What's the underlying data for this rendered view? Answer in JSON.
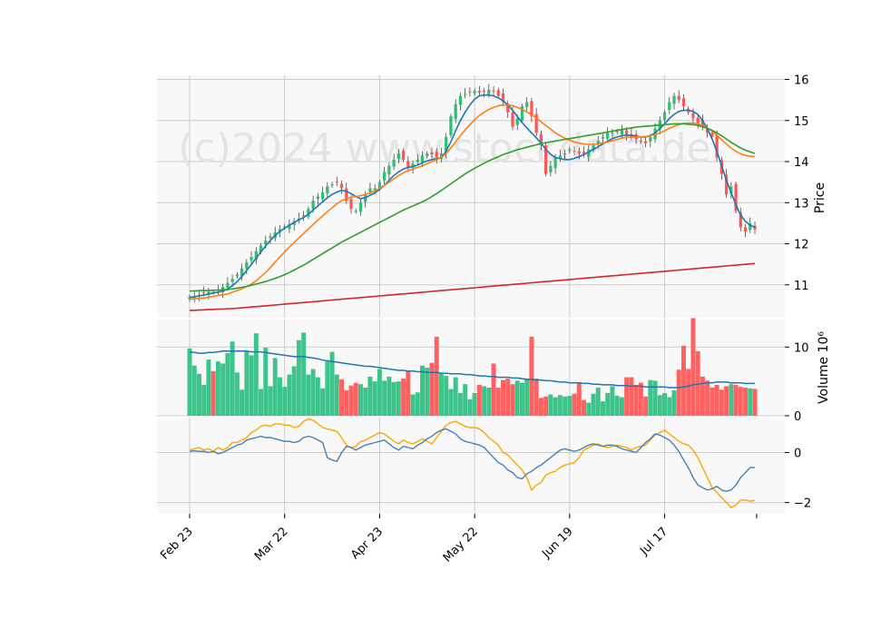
{
  "watermark": "(c)2024 www.stockdata.de",
  "colors": {
    "up": "#2fbf71",
    "down": "#ff5555",
    "vol_up": "#3cc48a",
    "vol_down": "#ff6060",
    "ma_fast": "#1f77b4",
    "ma_mid": "#ff7f0e",
    "ma_slow": "#2ca02c",
    "ma_long": "#d62728",
    "vol_avg": "#1f77b4",
    "osc_a": "#ffa500",
    "osc_b": "#4682b4"
  },
  "chart_data": {
    "type": "candlestick",
    "x_tick_labels": [
      "Feb 23",
      "Mar 22",
      "Apr 23",
      "May 22",
      "Jun 19",
      "Jul 17"
    ],
    "x_tick_index": [
      0,
      20,
      40,
      60,
      80,
      100
    ],
    "price_panel": {
      "ylabel": "Price",
      "ylim": [
        10.2,
        16.1
      ],
      "yticks": [
        11,
        12,
        13,
        14,
        15,
        16
      ],
      "grid": true,
      "close": [
        10.7,
        10.72,
        10.76,
        10.8,
        10.83,
        10.82,
        10.88,
        10.95,
        11.05,
        11.15,
        11.25,
        11.4,
        11.55,
        11.68,
        11.82,
        11.96,
        12.08,
        12.18,
        12.28,
        12.36,
        12.42,
        12.48,
        12.55,
        12.62,
        12.7,
        12.85,
        13.05,
        13.15,
        13.25,
        13.4,
        13.45,
        13.5,
        13.35,
        13.05,
        12.85,
        12.8,
        13.0,
        13.2,
        13.35,
        13.35,
        13.5,
        13.75,
        13.9,
        14.05,
        14.2,
        14.05,
        13.85,
        13.95,
        14.05,
        14.15,
        14.2,
        14.18,
        14.1,
        14.2,
        14.6,
        15.1,
        15.4,
        15.6,
        15.65,
        15.7,
        15.72,
        15.68,
        15.7,
        15.75,
        15.72,
        15.6,
        15.45,
        15.2,
        14.85,
        15.05,
        15.35,
        15.45,
        15.1,
        14.7,
        14.4,
        13.7,
        13.9,
        14.1,
        14.15,
        14.2,
        14.3,
        14.25,
        14.2,
        14.18,
        14.3,
        14.4,
        14.5,
        14.6,
        14.7,
        14.7,
        14.72,
        14.78,
        14.65,
        14.6,
        14.55,
        14.5,
        14.45,
        14.6,
        14.8,
        15.0,
        15.2,
        15.45,
        15.6,
        15.5,
        15.35,
        15.2,
        15.05,
        14.95,
        14.85,
        14.7,
        14.6,
        14.1,
        13.7,
        13.2,
        13.4,
        12.8,
        12.4,
        12.3,
        12.5,
        12.35
      ],
      "moving_averages": {
        "fast": [
          10.7,
          10.71,
          10.73,
          10.75,
          10.78,
          10.8,
          10.82,
          10.85,
          10.9,
          10.98,
          11.08,
          11.2,
          11.35,
          11.5,
          11.65,
          11.8,
          11.95,
          12.08,
          12.2,
          12.3,
          12.38,
          12.45,
          12.52,
          12.58,
          12.64,
          12.72,
          12.82,
          12.92,
          13.02,
          13.12,
          13.2,
          13.26,
          13.3,
          13.28,
          13.22,
          13.15,
          13.1,
          13.12,
          13.18,
          13.24,
          13.32,
          13.42,
          13.55,
          13.66,
          13.75,
          13.82,
          13.86,
          13.88,
          13.92,
          13.97,
          14.02,
          14.05,
          14.07,
          14.1,
          14.25,
          14.48,
          14.75,
          15.0,
          15.2,
          15.38,
          15.52,
          15.6,
          15.62,
          15.62,
          15.6,
          15.55,
          15.48,
          15.38,
          15.25,
          15.1,
          14.95,
          14.82,
          14.7,
          14.58,
          14.45,
          14.3,
          14.18,
          14.1,
          14.07,
          14.05,
          14.05,
          14.08,
          14.12,
          14.17,
          14.23,
          14.3,
          14.36,
          14.43,
          14.5,
          14.56,
          14.6,
          14.63,
          14.64,
          14.64,
          14.62,
          14.6,
          14.6,
          14.63,
          14.7,
          14.8,
          14.92,
          15.05,
          15.15,
          15.22,
          15.25,
          15.25,
          15.22,
          15.15,
          15.0,
          14.8,
          14.55,
          14.25,
          13.9,
          13.55,
          13.25,
          12.95,
          12.7,
          12.55,
          12.45,
          12.4
        ],
        "mid": [
          10.65,
          10.66,
          10.67,
          10.68,
          10.7,
          10.72,
          10.74,
          10.76,
          10.78,
          10.82,
          10.86,
          10.9,
          10.96,
          11.02,
          11.1,
          11.2,
          11.3,
          11.42,
          11.55,
          11.68,
          11.8,
          11.92,
          12.03,
          12.14,
          12.25,
          12.36,
          12.47,
          12.58,
          12.68,
          12.78,
          12.88,
          12.97,
          13.05,
          13.1,
          13.13,
          13.15,
          13.17,
          13.2,
          13.24,
          13.29,
          13.35,
          13.42,
          13.5,
          13.58,
          13.66,
          13.73,
          13.78,
          13.82,
          13.86,
          13.9,
          13.95,
          14.0,
          14.05,
          14.1,
          14.2,
          14.33,
          14.48,
          14.63,
          14.77,
          14.9,
          15.02,
          15.12,
          15.2,
          15.27,
          15.32,
          15.36,
          15.38,
          15.38,
          15.36,
          15.32,
          15.27,
          15.21,
          15.14,
          15.06,
          14.97,
          14.88,
          14.79,
          14.7,
          14.63,
          14.57,
          14.52,
          14.48,
          14.45,
          14.43,
          14.42,
          14.42,
          14.43,
          14.45,
          14.48,
          14.51,
          14.54,
          14.57,
          14.59,
          14.6,
          14.6,
          14.6,
          14.61,
          14.63,
          14.66,
          14.7,
          14.75,
          14.81,
          14.86,
          14.9,
          14.93,
          14.94,
          14.94,
          14.92,
          14.88,
          14.82,
          14.74,
          14.64,
          14.53,
          14.43,
          14.33,
          14.25,
          14.19,
          14.15,
          14.13,
          14.12
        ],
        "slow": [
          10.85,
          10.85,
          10.86,
          10.86,
          10.86,
          10.87,
          10.87,
          10.88,
          10.89,
          10.9,
          10.92,
          10.94,
          10.96,
          10.99,
          11.02,
          11.05,
          11.08,
          11.12,
          11.16,
          11.2,
          11.25,
          11.3,
          11.36,
          11.42,
          11.48,
          11.55,
          11.62,
          11.69,
          11.76,
          11.83,
          11.9,
          11.97,
          12.04,
          12.1,
          12.16,
          12.22,
          12.28,
          12.34,
          12.4,
          12.46,
          12.52,
          12.58,
          12.64,
          12.7,
          12.76,
          12.82,
          12.87,
          12.92,
          12.97,
          13.02,
          13.08,
          13.15,
          13.22,
          13.3,
          13.38,
          13.46,
          13.54,
          13.62,
          13.7,
          13.77,
          13.84,
          13.9,
          13.96,
          14.02,
          14.07,
          14.12,
          14.17,
          14.21,
          14.25,
          14.29,
          14.32,
          14.35,
          14.38,
          14.41,
          14.44,
          14.46,
          14.48,
          14.5,
          14.52,
          14.54,
          14.56,
          14.58,
          14.6,
          14.62,
          14.64,
          14.66,
          14.68,
          14.7,
          14.72,
          14.74,
          14.76,
          14.78,
          14.8,
          14.82,
          14.84,
          14.85,
          14.86,
          14.87,
          14.88,
          14.89,
          14.9,
          14.91,
          14.92,
          14.92,
          14.92,
          14.91,
          14.9,
          14.88,
          14.85,
          14.81,
          14.76,
          14.7,
          14.63,
          14.55,
          14.47,
          14.4,
          14.33,
          14.28,
          14.24,
          14.2
        ],
        "long": [
          10.38,
          10.38,
          10.39,
          10.39,
          10.4,
          10.4,
          10.41,
          10.41,
          10.42,
          10.42,
          10.43,
          10.44,
          10.45,
          10.46,
          10.47,
          10.48,
          10.49,
          10.5,
          10.51,
          10.52,
          10.53,
          10.54,
          10.55,
          10.56,
          10.57,
          10.58,
          10.59,
          10.6,
          10.61,
          10.62,
          10.63,
          10.64,
          10.65,
          10.66,
          10.67,
          10.68,
          10.69,
          10.7,
          10.71,
          10.72,
          10.73,
          10.74,
          10.75,
          10.76,
          10.77,
          10.78,
          10.79,
          10.8,
          10.81,
          10.82,
          10.83,
          10.84,
          10.85,
          10.86,
          10.87,
          10.88,
          10.89,
          10.9,
          10.91,
          10.92,
          10.93,
          10.94,
          10.95,
          10.96,
          10.97,
          10.98,
          10.99,
          11.0,
          11.01,
          11.02,
          11.03,
          11.04,
          11.05,
          11.06,
          11.07,
          11.08,
          11.09,
          11.1,
          11.11,
          11.12,
          11.13,
          11.14,
          11.15,
          11.16,
          11.17,
          11.18,
          11.19,
          11.2,
          11.21,
          11.22,
          11.23,
          11.24,
          11.25,
          11.26,
          11.27,
          11.28,
          11.29,
          11.3,
          11.31,
          11.32,
          11.33,
          11.34,
          11.35,
          11.36,
          11.37,
          11.38,
          11.39,
          11.4,
          11.41,
          11.42,
          11.43,
          11.44,
          11.45,
          11.46,
          11.47,
          11.48,
          11.49,
          11.5,
          11.51,
          11.52
        ]
      }
    },
    "volume_panel": {
      "ylabel": "Volume  10^6",
      "ylim": [
        0,
        14
      ],
      "yticks": [
        0,
        10
      ],
      "volume": [
        9.8,
        7.3,
        6.1,
        4.5,
        8.2,
        6.5,
        7.9,
        7.6,
        9.1,
        10.8,
        6.3,
        3.8,
        9.3,
        8.8,
        12.0,
        3.9,
        9.9,
        4.3,
        8.4,
        5.6,
        4.2,
        6.0,
        7.2,
        11.0,
        12.1,
        6.0,
        6.8,
        5.6,
        4.0,
        7.9,
        9.3,
        6.0,
        5.3,
        3.7,
        4.4,
        4.8,
        4.6,
        4.1,
        5.7,
        5.0,
        6.8,
        5.1,
        5.7,
        4.9,
        5.0,
        5.4,
        6.5,
        3.1,
        3.4,
        7.3,
        7.0,
        7.7,
        11.5,
        6.1,
        5.8,
        3.9,
        5.6,
        3.3,
        4.6,
        2.4,
        3.3,
        4.5,
        4.3,
        4.1,
        7.6,
        4.1,
        5.2,
        5.4,
        4.6,
        5.1,
        4.8,
        5.4,
        11.5,
        5.4,
        2.6,
        2.8,
        3.1,
        2.7,
        3.0,
        2.8,
        2.9,
        3.2,
        4.9,
        2.3,
        1.9,
        3.2,
        4.1,
        2.1,
        3.3,
        4.3,
        2.9,
        2.7,
        5.6,
        5.6,
        4.5,
        4.8,
        2.8,
        5.2,
        5.1,
        3.0,
        3.3,
        2.7,
        3.7,
        6.7,
        10.2,
        6.8,
        14.2,
        9.4,
        5.7,
        5.1,
        4.1,
        4.5,
        3.8,
        4.3,
        4.6,
        4.5,
        4.2,
        4.1,
        4.0,
        3.9
      ],
      "avg": [
        9.3,
        9.2,
        9.1,
        9.1,
        9.2,
        9.2,
        9.3,
        9.4,
        9.4,
        9.4,
        9.4,
        9.4,
        9.4,
        9.3,
        9.3,
        9.3,
        9.2,
        9.1,
        9.0,
        8.9,
        8.8,
        8.7,
        8.6,
        8.6,
        8.6,
        8.5,
        8.4,
        8.3,
        8.1,
        8.0,
        7.9,
        7.8,
        7.7,
        7.6,
        7.5,
        7.4,
        7.3,
        7.2,
        7.2,
        7.1,
        7.0,
        6.9,
        6.8,
        6.7,
        6.6,
        6.6,
        6.5,
        6.5,
        6.4,
        6.4,
        6.3,
        6.3,
        6.3,
        6.2,
        6.2,
        6.1,
        6.1,
        6.1,
        6.0,
        6.0,
        5.9,
        5.8,
        5.8,
        5.7,
        5.7,
        5.6,
        5.6,
        5.6,
        5.5,
        5.5,
        5.4,
        5.3,
        5.3,
        5.2,
        5.2,
        5.1,
        5.1,
        5.0,
        4.9,
        4.9,
        4.8,
        4.8,
        4.8,
        4.7,
        4.7,
        4.6,
        4.6,
        4.5,
        4.5,
        4.5,
        4.4,
        4.4,
        4.4,
        4.3,
        4.3,
        4.3,
        4.2,
        4.2,
        4.2,
        4.2,
        4.2,
        4.1,
        4.1,
        4.1,
        4.2,
        4.3,
        4.5,
        4.6,
        4.7,
        4.8,
        4.8,
        4.9,
        4.9,
        4.9,
        4.8,
        4.8,
        4.8,
        4.7,
        4.7,
        4.7
      ]
    },
    "oscillator_panel": {
      "ylim": [
        -2.45,
        1.4
      ],
      "yticks": [
        -2,
        0
      ],
      "series_a": [
        0.1,
        0.15,
        0.2,
        0.1,
        0.15,
        0.05,
        0.2,
        0.1,
        0.2,
        0.4,
        0.4,
        0.5,
        0.6,
        0.8,
        0.9,
        1.05,
        1.1,
        1.05,
        1.15,
        1.15,
        1.1,
        1.1,
        1.0,
        1.05,
        1.25,
        1.35,
        1.3,
        1.15,
        1.0,
        0.95,
        0.9,
        0.85,
        0.6,
        0.3,
        0.2,
        0.25,
        0.45,
        0.5,
        0.6,
        0.7,
        0.8,
        0.75,
        0.6,
        0.45,
        0.35,
        0.5,
        0.4,
        0.35,
        0.45,
        0.55,
        0.45,
        0.35,
        0.6,
        0.85,
        1.1,
        1.2,
        1.25,
        1.15,
        1.05,
        1.0,
        1.0,
        0.95,
        0.8,
        0.6,
        0.45,
        0.3,
        0.0,
        -0.1,
        -0.3,
        -0.5,
        -0.7,
        -1.0,
        -1.5,
        -1.3,
        -1.2,
        -0.9,
        -0.8,
        -0.75,
        -0.6,
        -0.5,
        -0.45,
        -0.4,
        -0.2,
        0.1,
        0.2,
        0.3,
        0.35,
        0.25,
        0.2,
        0.25,
        0.3,
        0.25,
        0.2,
        0.1,
        0.2,
        0.25,
        0.3,
        0.5,
        0.7,
        0.8,
        0.9,
        0.75,
        0.6,
        0.45,
        0.35,
        0.3,
        0.1,
        -0.2,
        -0.6,
        -1.0,
        -1.4,
        -1.6,
        -1.8,
        -2.0,
        -2.2,
        -2.1,
        -1.9,
        -1.9,
        -1.95,
        -1.9
      ],
      "series_b": [
        0.05,
        0.07,
        0.05,
        0.05,
        0.0,
        0.05,
        -0.05,
        0.0,
        0.1,
        0.2,
        0.3,
        0.35,
        0.5,
        0.55,
        0.6,
        0.65,
        0.6,
        0.6,
        0.55,
        0.5,
        0.45,
        0.45,
        0.4,
        0.45,
        0.6,
        0.65,
        0.6,
        0.5,
        0.4,
        -0.2,
        -0.3,
        -0.35,
        0.0,
        0.25,
        0.2,
        0.1,
        0.2,
        0.3,
        0.35,
        0.4,
        0.45,
        0.5,
        0.35,
        0.2,
        0.1,
        0.25,
        0.2,
        0.15,
        0.3,
        0.4,
        0.55,
        0.65,
        0.8,
        0.9,
        0.95,
        0.85,
        0.75,
        0.55,
        0.45,
        0.4,
        0.35,
        0.3,
        0.2,
        0.0,
        -0.2,
        -0.4,
        -0.5,
        -0.7,
        -0.8,
        -1.0,
        -1.05,
        -0.85,
        -0.75,
        -0.6,
        -0.5,
        -0.35,
        -0.2,
        -0.05,
        0.1,
        0.15,
        0.1,
        0.05,
        0.1,
        0.2,
        0.3,
        0.35,
        0.3,
        0.25,
        0.3,
        0.3,
        0.25,
        0.15,
        0.1,
        0.05,
        0.0,
        0.2,
        0.4,
        0.55,
        0.75,
        0.7,
        0.6,
        0.5,
        0.3,
        0.05,
        -0.3,
        -0.6,
        -1.0,
        -1.3,
        -1.4,
        -1.5,
        -1.45,
        -1.35,
        -1.5,
        -1.55,
        -1.5,
        -1.3,
        -1.0,
        -0.8,
        -0.6,
        -0.6
      ]
    }
  }
}
